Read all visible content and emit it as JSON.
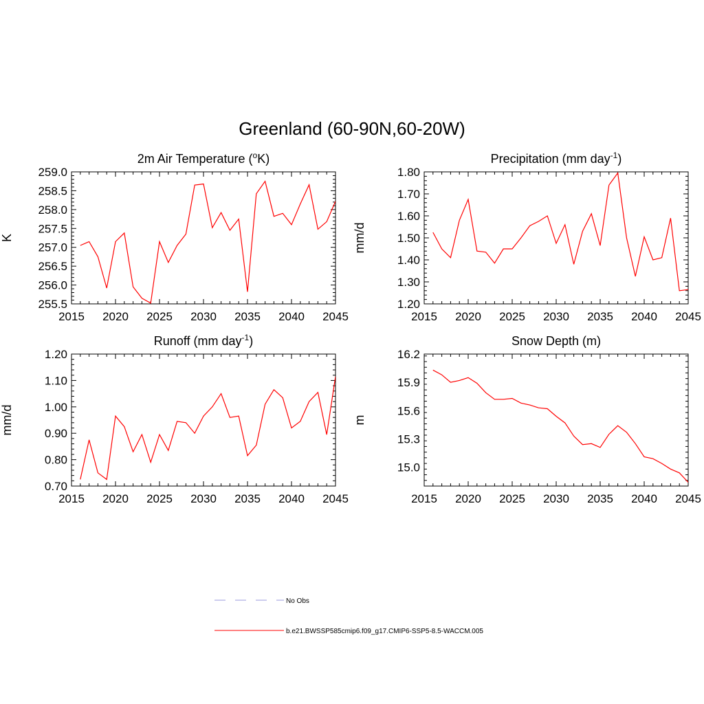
{
  "figure": {
    "title": "Greenland (60-90N,60-20W)"
  },
  "legend": {
    "entries": [
      {
        "label": "No Obs",
        "color": "#9999dd",
        "dash": true
      },
      {
        "label": "b.e21.BWSSP585cmip6.f09_g17.CMIP6-SSP5-8.5-WACCM.005",
        "color": "#ff0000",
        "dash": false
      }
    ]
  },
  "chart_data": [
    {
      "type": "line",
      "title": "2m Air Temperature (°K)",
      "title_parts": {
        "pre": "2m Air Temperature (",
        "sup": "o",
        "post": "K)"
      },
      "xlabel": "",
      "ylabel": "K",
      "xlim": [
        2015,
        2045
      ],
      "ylim": [
        255.5,
        259.0
      ],
      "xticks": [
        2015,
        2020,
        2025,
        2030,
        2035,
        2040,
        2045
      ],
      "yticks": [
        255.5,
        256.0,
        256.5,
        257.0,
        257.5,
        258.0,
        258.5,
        259.0
      ],
      "ytick_labels": [
        "255.5",
        "256.0",
        "256.5",
        "257.0",
        "257.5",
        "258.0",
        "258.5",
        "259.0"
      ],
      "grid": false,
      "series": [
        {
          "name": "b.e21.BWSSP585cmip6.f09_g17.CMIP6-SSP5-8.5-WACCM.005",
          "color": "#ff0000",
          "x": [
            2016,
            2017,
            2018,
            2019,
            2020,
            2021,
            2022,
            2023,
            2024,
            2025,
            2026,
            2027,
            2028,
            2029,
            2030,
            2031,
            2032,
            2033,
            2034,
            2035,
            2036,
            2037,
            2038,
            2039,
            2040,
            2041,
            2042,
            2043,
            2044,
            2045
          ],
          "values": [
            257.05,
            257.15,
            256.75,
            255.92,
            257.15,
            257.38,
            255.95,
            255.65,
            255.52,
            257.15,
            256.6,
            257.05,
            257.35,
            258.65,
            258.68,
            257.52,
            257.92,
            257.45,
            257.75,
            255.82,
            258.42,
            258.75,
            257.82,
            257.9,
            257.6,
            258.15,
            258.66,
            257.48,
            257.68,
            258.22
          ]
        }
      ]
    },
    {
      "type": "line",
      "title": "Precipitation (mm day-1)",
      "title_parts": {
        "pre": "Precipitation (mm day",
        "sup": "-1",
        "post": ")"
      },
      "xlabel": "",
      "ylabel": "mm/d",
      "xlim": [
        2015,
        2045
      ],
      "ylim": [
        1.2,
        1.8
      ],
      "xticks": [
        2015,
        2020,
        2025,
        2030,
        2035,
        2040,
        2045
      ],
      "yticks": [
        1.2,
        1.3,
        1.4,
        1.5,
        1.6,
        1.7,
        1.8
      ],
      "ytick_labels": [
        "1.20",
        "1.30",
        "1.40",
        "1.50",
        "1.60",
        "1.70",
        "1.80"
      ],
      "grid": false,
      "series": [
        {
          "name": "b.e21.BWSSP585cmip6.f09_g17.CMIP6-SSP5-8.5-WACCM.005",
          "color": "#ff0000",
          "x": [
            2016,
            2017,
            2018,
            2019,
            2020,
            2021,
            2022,
            2023,
            2024,
            2025,
            2026,
            2027,
            2028,
            2029,
            2030,
            2031,
            2032,
            2033,
            2034,
            2035,
            2036,
            2037,
            2038,
            2039,
            2040,
            2041,
            2042,
            2043,
            2044,
            2045
          ],
          "values": [
            1.525,
            1.45,
            1.41,
            1.58,
            1.675,
            1.44,
            1.435,
            1.385,
            1.45,
            1.45,
            1.5,
            1.555,
            1.575,
            1.6,
            1.475,
            1.56,
            1.38,
            1.53,
            1.61,
            1.465,
            1.74,
            1.795,
            1.5,
            1.325,
            1.505,
            1.4,
            1.41,
            1.59,
            1.26,
            1.265
          ]
        }
      ]
    },
    {
      "type": "line",
      "title": "Runoff (mm day-1)",
      "title_parts": {
        "pre": "Runoff (mm day",
        "sup": "-1",
        "post": ")"
      },
      "xlabel": "",
      "ylabel": "mm/d",
      "xlim": [
        2015,
        2045
      ],
      "ylim": [
        0.7,
        1.2
      ],
      "xticks": [
        2015,
        2020,
        2025,
        2030,
        2035,
        2040,
        2045
      ],
      "yticks": [
        0.7,
        0.8,
        0.9,
        1.0,
        1.1,
        1.2
      ],
      "ytick_labels": [
        "0.70",
        "0.80",
        "0.90",
        "1.00",
        "1.10",
        "1.20"
      ],
      "grid": false,
      "series": [
        {
          "name": "b.e21.BWSSP585cmip6.f09_g17.CMIP6-SSP5-8.5-WACCM.005",
          "color": "#ff0000",
          "x": [
            2016,
            2017,
            2018,
            2019,
            2020,
            2021,
            2022,
            2023,
            2024,
            2025,
            2026,
            2027,
            2028,
            2029,
            2030,
            2031,
            2032,
            2033,
            2034,
            2035,
            2036,
            2037,
            2038,
            2039,
            2040,
            2041,
            2042,
            2043,
            2044,
            2045
          ],
          "values": [
            0.725,
            0.875,
            0.75,
            0.725,
            0.965,
            0.925,
            0.83,
            0.895,
            0.79,
            0.895,
            0.835,
            0.945,
            0.94,
            0.9,
            0.965,
            1.0,
            1.05,
            0.96,
            0.965,
            0.815,
            0.855,
            1.01,
            1.065,
            1.035,
            0.92,
            0.945,
            1.02,
            1.055,
            0.895,
            1.115
          ]
        }
      ]
    },
    {
      "type": "line",
      "title": "Snow Depth (m)",
      "title_parts": {
        "pre": "Snow Depth (m)",
        "sup": "",
        "post": ""
      },
      "xlabel": "",
      "ylabel": "m",
      "xlim": [
        2015,
        2045
      ],
      "ylim": [
        14.8,
        16.2
      ],
      "xticks": [
        2015,
        2020,
        2025,
        2030,
        2035,
        2040,
        2045
      ],
      "yticks": [
        15.0,
        15.3,
        15.6,
        15.9,
        16.2
      ],
      "ytick_labels": [
        "15.0",
        "15.3",
        "15.6",
        "15.9",
        "16.2"
      ],
      "grid": false,
      "series": [
        {
          "name": "b.e21.BWSSP585cmip6.f09_g17.CMIP6-SSP5-8.5-WACCM.005",
          "color": "#ff0000",
          "x": [
            2016,
            2017,
            2018,
            2019,
            2020,
            2021,
            2022,
            2023,
            2024,
            2025,
            2026,
            2027,
            2028,
            2029,
            2030,
            2031,
            2032,
            2033,
            2034,
            2035,
            2036,
            2037,
            2038,
            2039,
            2040,
            2041,
            2042,
            2043,
            2044,
            2045
          ],
          "values": [
            16.03,
            15.98,
            15.9,
            15.92,
            15.95,
            15.89,
            15.79,
            15.72,
            15.72,
            15.73,
            15.68,
            15.66,
            15.63,
            15.62,
            15.54,
            15.47,
            15.33,
            15.24,
            15.25,
            15.21,
            15.35,
            15.44,
            15.37,
            15.25,
            15.11,
            15.09,
            15.04,
            14.98,
            14.94,
            14.84
          ]
        }
      ]
    }
  ]
}
